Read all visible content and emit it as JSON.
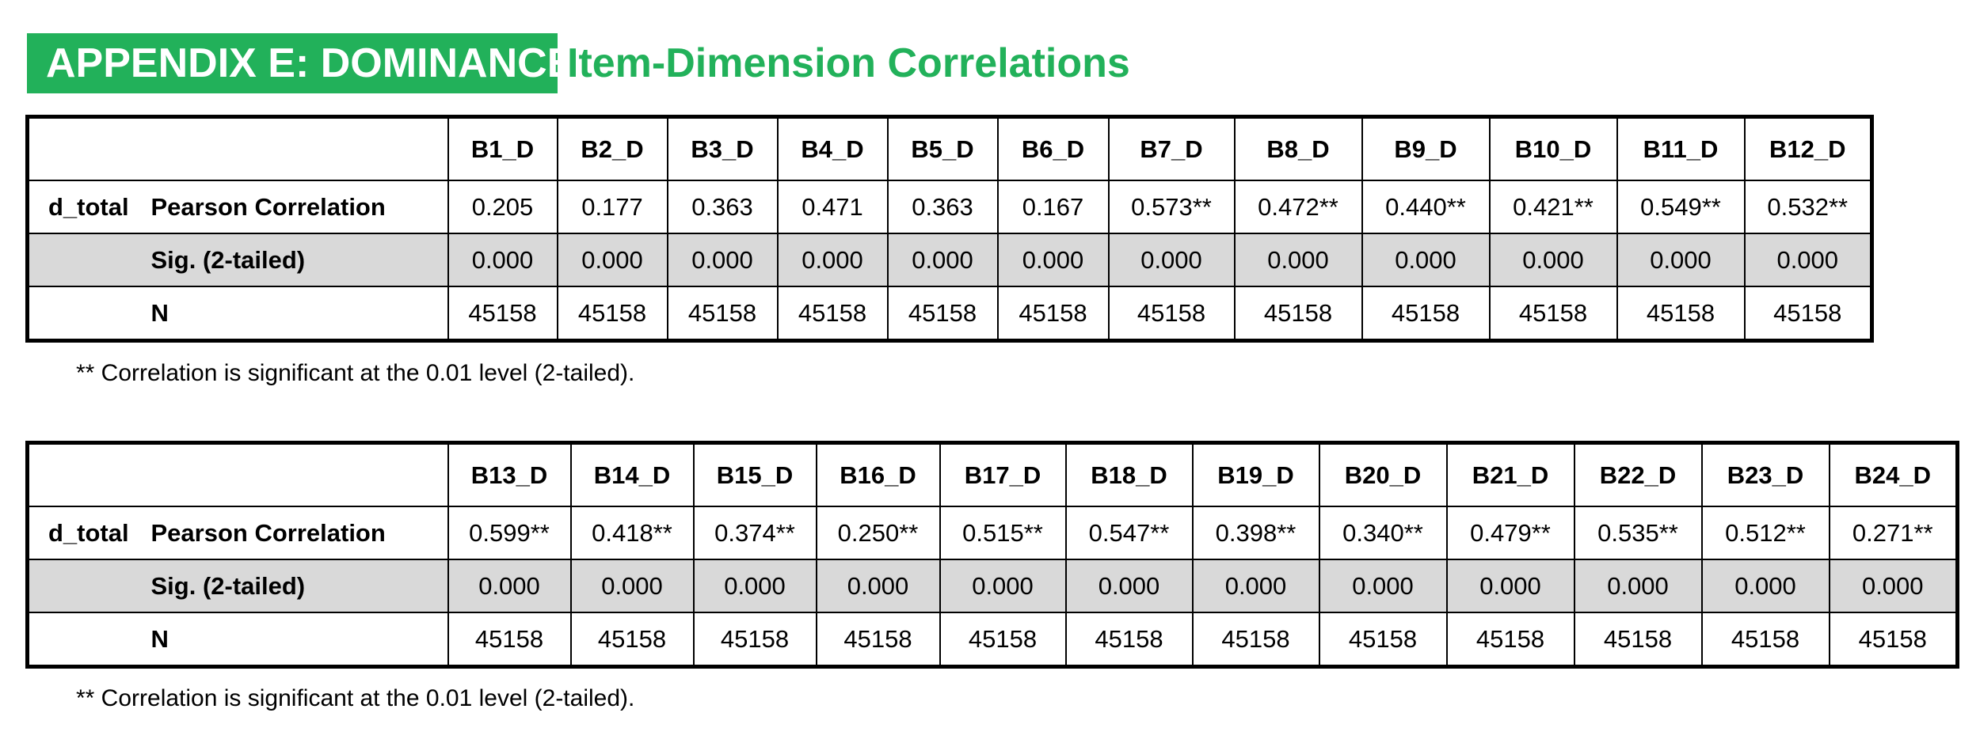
{
  "title": {
    "main": "APPENDIX E: DOMINANCE",
    "sub": "Item-Dimension Correlations"
  },
  "colors": {
    "accent": "#22b15a",
    "shade": "#d9d9d9"
  },
  "tables": [
    {
      "row_label": "d_total",
      "stat_labels": [
        "Pearson Correlation",
        "Sig. (2-tailed)",
        "N"
      ],
      "columns": [
        "B1_D",
        "B2_D",
        "B3_D",
        "B4_D",
        "B5_D",
        "B6_D",
        "B7_D",
        "B8_D",
        "B9_D",
        "B10_D",
        "B11_D",
        "B12_D"
      ],
      "pearson": [
        "0.205",
        "0.177",
        "0.363",
        "0.471",
        "0.363",
        "0.167",
        "0.573**",
        "0.472**",
        "0.440**",
        "0.421**",
        "0.549**",
        "0.532**"
      ],
      "sig": [
        "0.000",
        "0.000",
        "0.000",
        "0.000",
        "0.000",
        "0.000",
        "0.000",
        "0.000",
        "0.000",
        "0.000",
        "0.000",
        "0.000"
      ],
      "n": [
        "45158",
        "45158",
        "45158",
        "45158",
        "45158",
        "45158",
        "45158",
        "45158",
        "45158",
        "45158",
        "45158",
        "45158"
      ],
      "note": "** Correlation is significant at the 0.01 level (2-tailed)."
    },
    {
      "row_label": "d_total",
      "stat_labels": [
        "Pearson Correlation",
        "Sig. (2-tailed)",
        "N"
      ],
      "columns": [
        "B13_D",
        "B14_D",
        "B15_D",
        "B16_D",
        "B17_D",
        "B18_D",
        "B19_D",
        "B20_D",
        "B21_D",
        "B22_D",
        "B23_D",
        "B24_D"
      ],
      "pearson": [
        "0.599**",
        "0.418**",
        "0.374**",
        "0.250**",
        "0.515**",
        "0.547**",
        "0.398**",
        "0.340**",
        "0.479**",
        "0.535**",
        "0.512**",
        "0.271**"
      ],
      "sig": [
        "0.000",
        "0.000",
        "0.000",
        "0.000",
        "0.000",
        "0.000",
        "0.000",
        "0.000",
        "0.000",
        "0.000",
        "0.000",
        "0.000"
      ],
      "n": [
        "45158",
        "45158",
        "45158",
        "45158",
        "45158",
        "45158",
        "45158",
        "45158",
        "45158",
        "45158",
        "45158",
        "45158"
      ],
      "note": "** Correlation is significant at the 0.01 level (2-tailed)."
    }
  ]
}
